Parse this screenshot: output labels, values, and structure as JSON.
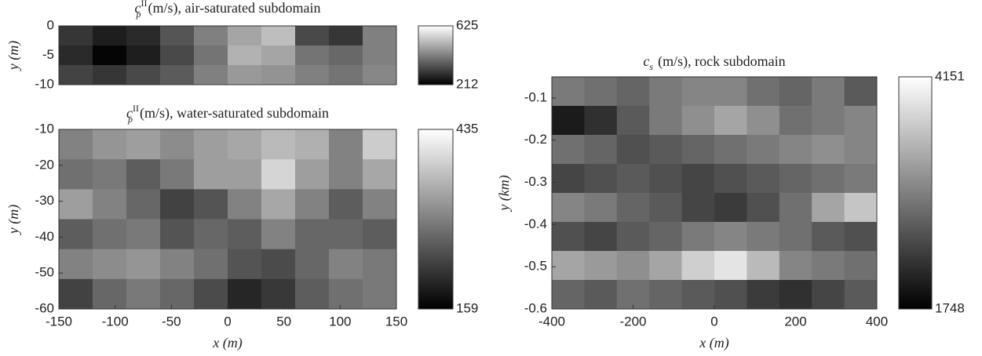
{
  "chart_data": [
    {
      "type": "heatmap",
      "title_symbol": "c",
      "title_sub": "p",
      "title_sup": "II",
      "title_rest": "(m/s), air-saturated subdomain",
      "ylabel": "y (m)",
      "xlim": [
        -150,
        150
      ],
      "ylim": [
        -10,
        0
      ],
      "yticks": [
        0,
        -5,
        -10
      ],
      "clim": [
        212,
        625
      ],
      "cticks": [
        212,
        625
      ],
      "z": [
        [
          300,
          260,
          280,
          350,
          420,
          480,
          520,
          330,
          300,
          420
        ],
        [
          280,
          220,
          260,
          330,
          400,
          500,
          480,
          400,
          380,
          420
        ],
        [
          320,
          300,
          330,
          360,
          420,
          460,
          450,
          420,
          400,
          430
        ]
      ]
    },
    {
      "type": "heatmap",
      "title_symbol": "c",
      "title_sub": "p",
      "title_sup": "II",
      "title_rest": "(m/s), water-saturated subdomain",
      "ylabel": "y (m)",
      "xlabel": "x (m)",
      "xlim": [
        -150,
        150
      ],
      "ylim": [
        -60,
        -10
      ],
      "xticks": [
        -150,
        -100,
        -50,
        0,
        50,
        100,
        150
      ],
      "yticks": [
        -10,
        -20,
        -30,
        -40,
        -50,
        -60
      ],
      "clim": [
        159,
        435
      ],
      "cticks": [
        159,
        435
      ],
      "z": [
        [
          300,
          320,
          330,
          310,
          330,
          340,
          360,
          350,
          300,
          380
        ],
        [
          280,
          290,
          260,
          290,
          330,
          330,
          390,
          330,
          300,
          340
        ],
        [
          330,
          300,
          270,
          230,
          250,
          300,
          340,
          300,
          260,
          300
        ],
        [
          260,
          280,
          290,
          250,
          270,
          260,
          300,
          270,
          270,
          260
        ],
        [
          300,
          310,
          320,
          300,
          280,
          250,
          240,
          270,
          300,
          290
        ],
        [
          230,
          270,
          290,
          270,
          240,
          200,
          220,
          260,
          280,
          290
        ]
      ]
    },
    {
      "type": "heatmap",
      "title_symbol": "c",
      "title_sub": "s",
      "title_rest": "(m/s), rock subdomain",
      "ylabel": "y (km)",
      "xlabel": "x (m)",
      "xlim": [
        -400,
        400
      ],
      "ylim": [
        -0.6,
        -0.05
      ],
      "xticks": [
        -400,
        -200,
        0,
        200,
        400
      ],
      "yticks": [
        -0.1,
        -0.2,
        -0.3,
        -0.4,
        -0.5,
        -0.6
      ],
      "clim": [
        1748,
        4151
      ],
      "cticks": [
        1748,
        4151
      ],
      "z": [
        [
          2900,
          2800,
          2700,
          2900,
          3000,
          3000,
          2800,
          2700,
          2900,
          2600
        ],
        [
          2000,
          2200,
          2600,
          2900,
          3100,
          3300,
          3100,
          2800,
          2900,
          3000
        ],
        [
          2800,
          2700,
          2500,
          2600,
          2700,
          2800,
          2900,
          3000,
          3100,
          3000
        ],
        [
          2400,
          2500,
          2600,
          2500,
          2400,
          2500,
          2600,
          2700,
          2800,
          2900
        ],
        [
          3000,
          2900,
          2700,
          2600,
          2400,
          2300,
          2500,
          2800,
          3300,
          3600
        ],
        [
          2500,
          2400,
          2600,
          2700,
          2900,
          3000,
          2900,
          2800,
          2600,
          2500
        ],
        [
          3300,
          3200,
          3100,
          3300,
          3700,
          3900,
          3500,
          3000,
          2900,
          2800
        ],
        [
          2700,
          2600,
          2800,
          2700,
          2600,
          2500,
          2300,
          2200,
          2400,
          2600
        ]
      ]
    }
  ]
}
